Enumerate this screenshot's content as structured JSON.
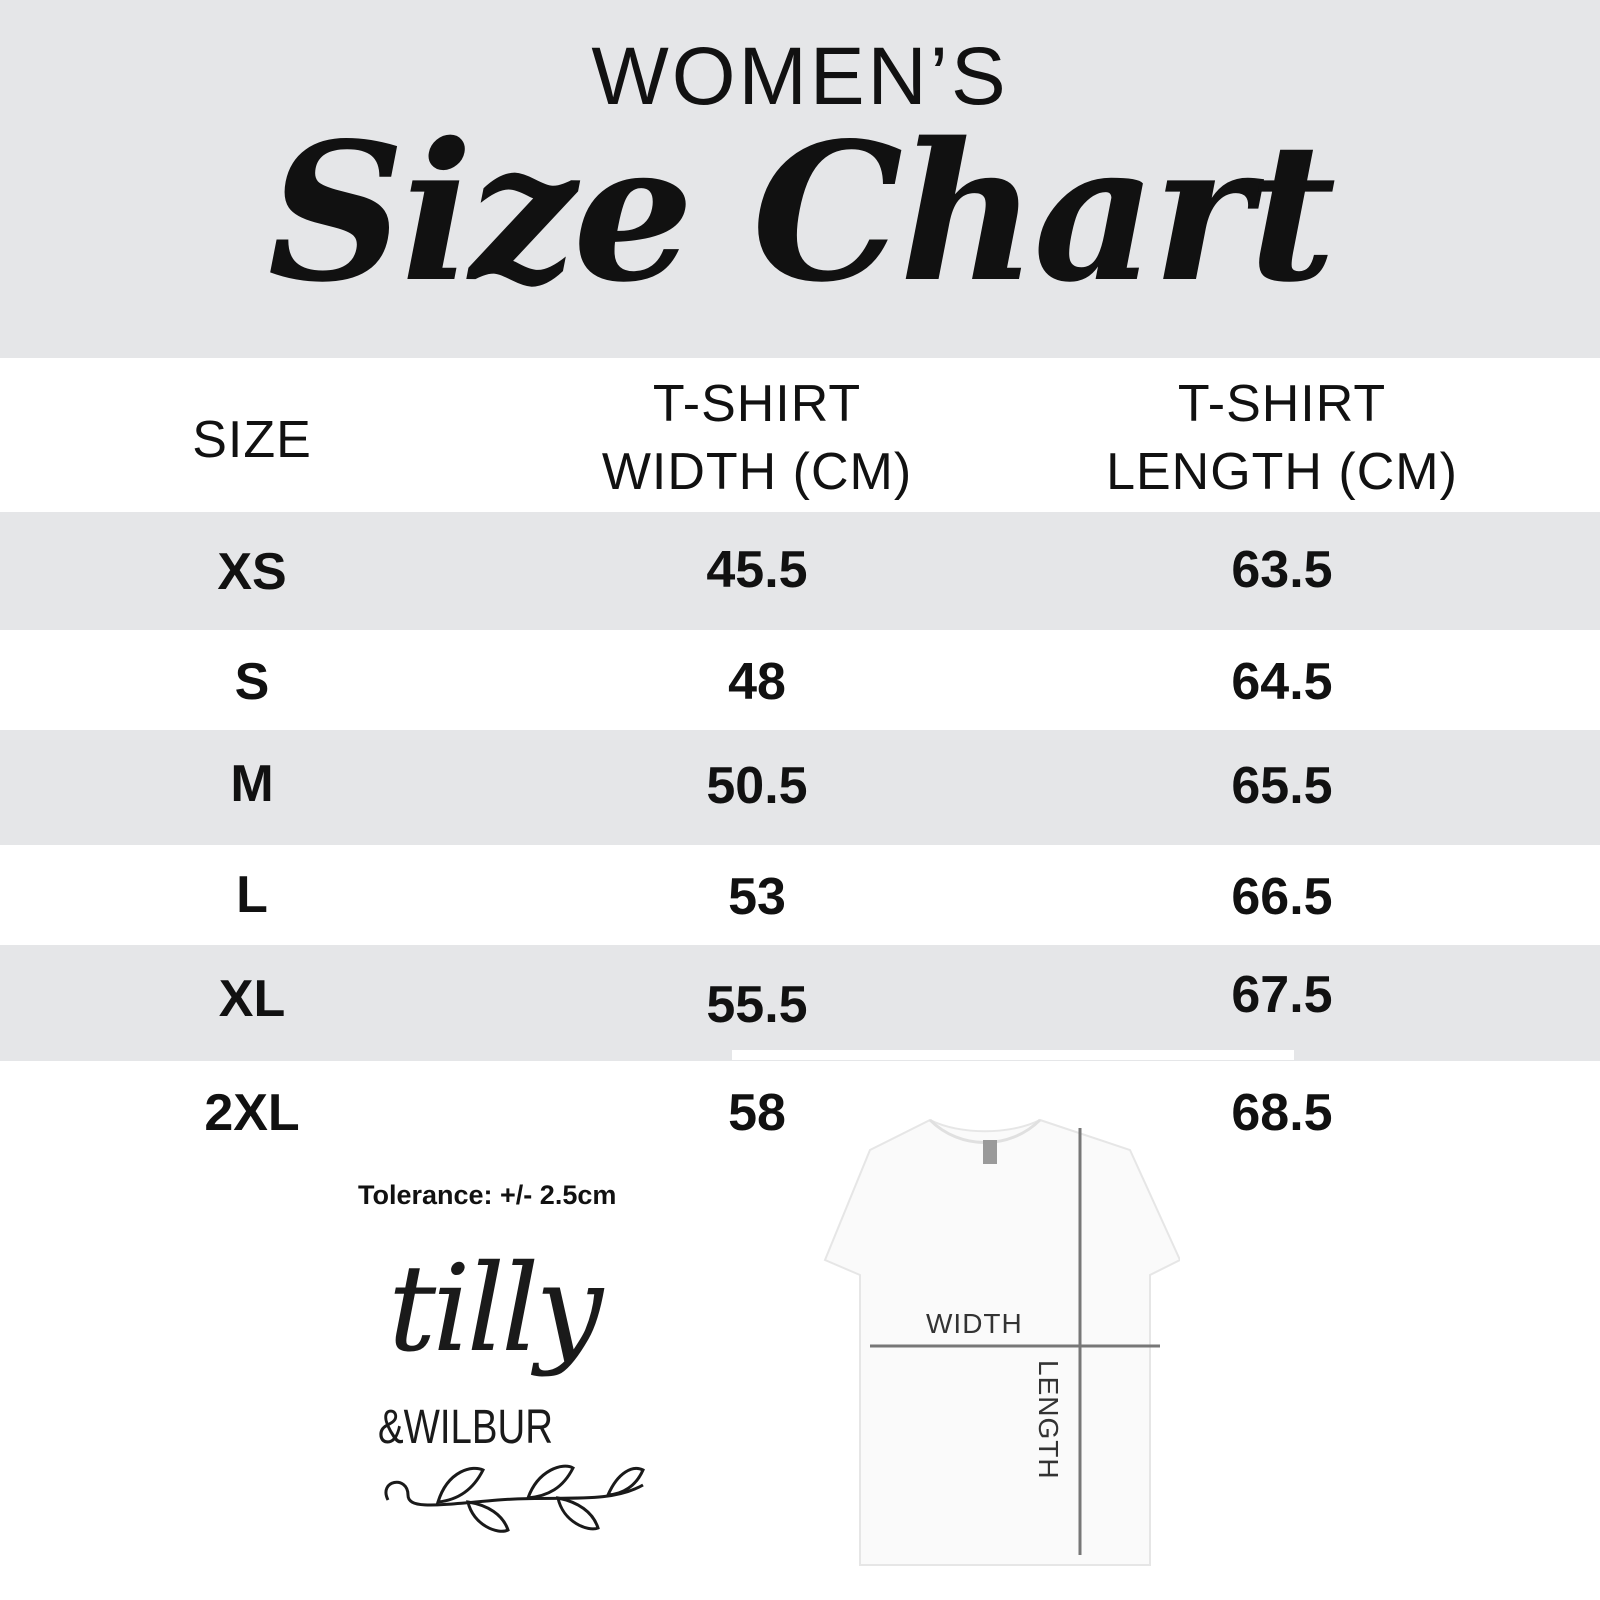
{
  "header": {
    "subtitle": "WOMEN’S",
    "title": "Size Chart"
  },
  "table": {
    "columns": [
      "SIZE",
      "T-SHIRT WIDTH (CM)",
      "T-SHIRT LENGTH (CM)"
    ],
    "column_lines": [
      [
        "SIZE"
      ],
      [
        "T-SHIRT",
        "WIDTH (CM)"
      ],
      [
        "T-SHIRT",
        "LENGTH (CM)"
      ]
    ],
    "rows": [
      {
        "size": "XS",
        "width": "45.5",
        "length": "63.5"
      },
      {
        "size": "S",
        "width": "48",
        "length": "64.5"
      },
      {
        "size": "M",
        "width": "50.5",
        "length": "65.5"
      },
      {
        "size": "L",
        "width": "53",
        "length": "66.5"
      },
      {
        "size": "XL",
        "width": "55.5",
        "length": "67.5"
      },
      {
        "size": "2XL",
        "width": "58",
        "length": "68.5"
      }
    ]
  },
  "tolerance": "Tolerance: +/- 2.5cm",
  "logo": {
    "line1": "tilly",
    "line2": "&WILBUR"
  },
  "diagram": {
    "width_label": "WIDTH",
    "length_label": "LENGTH"
  },
  "colors": {
    "band": "#e5e6e8",
    "text": "#111111",
    "measure_line": "#777777"
  }
}
